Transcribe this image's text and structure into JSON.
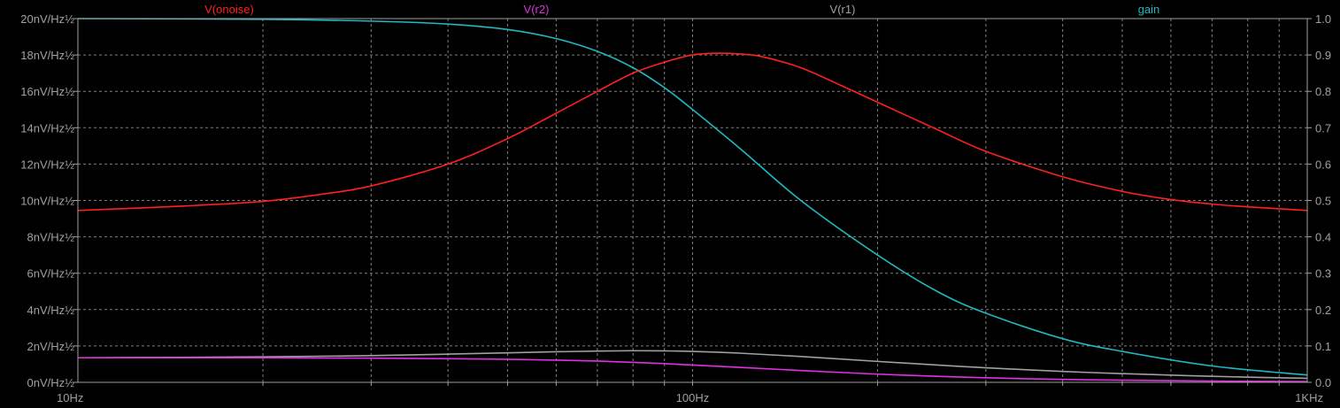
{
  "chart_data": {
    "type": "line",
    "xscale": "log",
    "xlim": [
      10,
      1000
    ],
    "x_ticks": [
      {
        "value": 10,
        "label": "10Hz"
      },
      {
        "value": 100,
        "label": "100Hz"
      },
      {
        "value": 1000,
        "label": "1KHz"
      }
    ],
    "left_axis": {
      "ylim": [
        0,
        20
      ],
      "tick_values": [
        0,
        2,
        4,
        6,
        8,
        10,
        12,
        14,
        16,
        18,
        20
      ],
      "tick_labels": [
        "0nV/Hz½",
        "2nV/Hz½",
        "4nV/Hz½",
        "6nV/Hz½",
        "8nV/Hz½",
        "10nV/Hz½",
        "12nV/Hz½",
        "14nV/Hz½",
        "16nV/Hz½",
        "18nV/Hz½",
        "20nV/Hz½"
      ]
    },
    "right_axis": {
      "ylim": [
        0,
        1
      ],
      "tick_values": [
        0,
        0.1,
        0.2,
        0.3,
        0.4,
        0.5,
        0.6,
        0.7,
        0.8,
        0.9,
        1.0
      ],
      "tick_labels": [
        "0.0",
        "0.1",
        "0.2",
        "0.3",
        "0.4",
        "0.5",
        "0.6",
        "0.7",
        "0.8",
        "0.9",
        "1.0"
      ]
    },
    "grid": true,
    "legend": "top",
    "colors": {
      "background": "#000000",
      "grid": "#808080",
      "axis": "#a0a0a0",
      "tick_label": "#a0a0a0"
    },
    "series": [
      {
        "name": "V(onoise)",
        "axis": "left",
        "color": "#ff2020",
        "x": [
          10,
          15,
          20,
          25,
          30,
          40,
          50,
          60,
          70,
          80,
          90,
          100,
          110,
          120,
          130,
          150,
          175,
          200,
          250,
          300,
          400,
          500,
          600,
          700,
          800,
          1000
        ],
        "values": [
          9.45,
          9.7,
          9.95,
          10.35,
          10.8,
          12.0,
          13.4,
          14.8,
          16.0,
          17.0,
          17.6,
          18.0,
          18.1,
          18.05,
          17.9,
          17.3,
          16.3,
          15.4,
          13.9,
          12.7,
          11.3,
          10.5,
          10.05,
          9.8,
          9.65,
          9.45
        ]
      },
      {
        "name": "V(r2)",
        "axis": "left",
        "color": "#e030e0",
        "x": [
          10,
          20,
          30,
          40,
          50,
          60,
          70,
          80,
          90,
          100,
          120,
          150,
          200,
          250,
          300,
          400,
          500,
          700,
          1000
        ],
        "values": [
          1.35,
          1.35,
          1.33,
          1.3,
          1.27,
          1.22,
          1.17,
          1.1,
          1.03,
          0.95,
          0.82,
          0.65,
          0.45,
          0.33,
          0.25,
          0.16,
          0.12,
          0.07,
          0.04
        ]
      },
      {
        "name": "V(r1)",
        "axis": "left",
        "color": "#a0a0a0",
        "x": [
          10,
          20,
          30,
          40,
          50,
          60,
          70,
          80,
          90,
          100,
          120,
          150,
          200,
          250,
          300,
          400,
          500,
          700,
          1000
        ],
        "values": [
          1.35,
          1.4,
          1.47,
          1.55,
          1.62,
          1.68,
          1.72,
          1.74,
          1.73,
          1.7,
          1.6,
          1.42,
          1.15,
          0.95,
          0.8,
          0.6,
          0.48,
          0.33,
          0.22
        ]
      },
      {
        "name": "gain",
        "axis": "right",
        "color": "#20b8c0",
        "x": [
          10,
          20,
          30,
          40,
          50,
          60,
          70,
          80,
          90,
          100,
          120,
          150,
          200,
          250,
          300,
          400,
          500,
          700,
          1000
        ],
        "values": [
          1.0,
          0.998,
          0.993,
          0.985,
          0.97,
          0.945,
          0.91,
          0.865,
          0.81,
          0.75,
          0.64,
          0.5,
          0.35,
          0.25,
          0.19,
          0.12,
          0.085,
          0.045,
          0.02
        ]
      }
    ]
  }
}
